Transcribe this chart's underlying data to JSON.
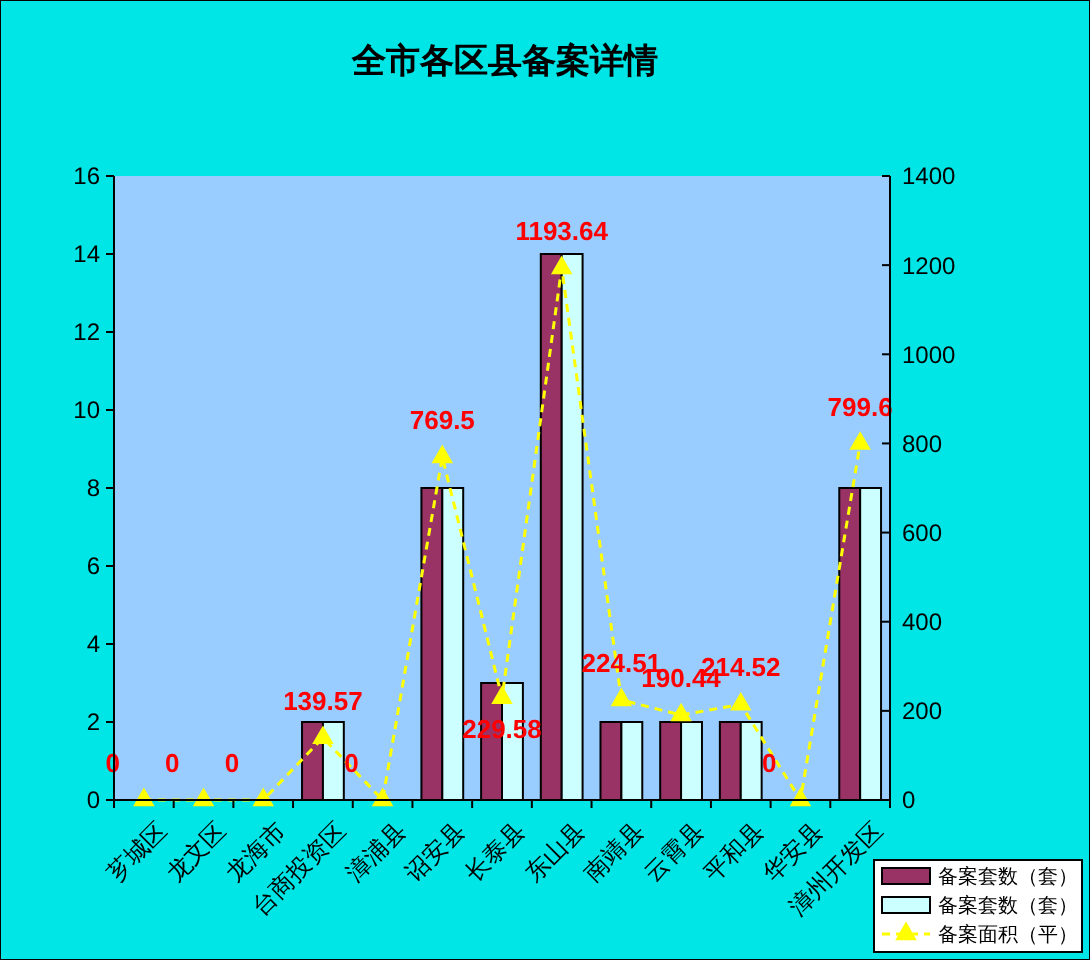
{
  "chart_data": {
    "type": "bar",
    "title": "全市各区县备案详情",
    "categories": [
      "芗城区",
      "龙文区",
      "龙海市",
      "台商投资区",
      "漳浦县",
      "诏安县",
      "长泰县",
      "东山县",
      "南靖县",
      "云霄县",
      "平和县",
      "华安县",
      "漳州开发区"
    ],
    "series": [
      {
        "name": "备案套数（套）",
        "color": "#993366",
        "values": [
          0,
          0,
          0,
          2,
          0,
          8,
          3,
          14,
          2,
          2,
          2,
          0,
          8
        ]
      },
      {
        "name": "备案套数（套）",
        "color": "#ccffff",
        "values": [
          0,
          0,
          0,
          2,
          0,
          8,
          3,
          14,
          2,
          2,
          2,
          0,
          8
        ]
      },
      {
        "name": "备案面积（平）",
        "type": "line",
        "axis": "y2",
        "color": "#ffff00",
        "marker": "triangle",
        "line_style": "dashed",
        "values": [
          0,
          0,
          0,
          139.57,
          0,
          769.5,
          229.58,
          1193.64,
          224.51,
          190.44,
          214.52,
          0,
          799.6
        ],
        "value_labels": [
          "0",
          "0",
          "0",
          "139.57",
          "0",
          "769.5",
          "229.58",
          "1193.64",
          "224.51",
          "190.44",
          "214.52",
          "0",
          "799.6"
        ]
      }
    ],
    "ylim": [
      0,
      16
    ],
    "yticks": [
      0,
      2,
      4,
      6,
      8,
      10,
      12,
      14,
      16
    ],
    "y2lim": [
      0,
      1400
    ],
    "y2ticks": [
      0,
      200,
      400,
      600,
      800,
      1000,
      1200,
      1400
    ],
    "grid": false,
    "legend": "bottom right"
  }
}
